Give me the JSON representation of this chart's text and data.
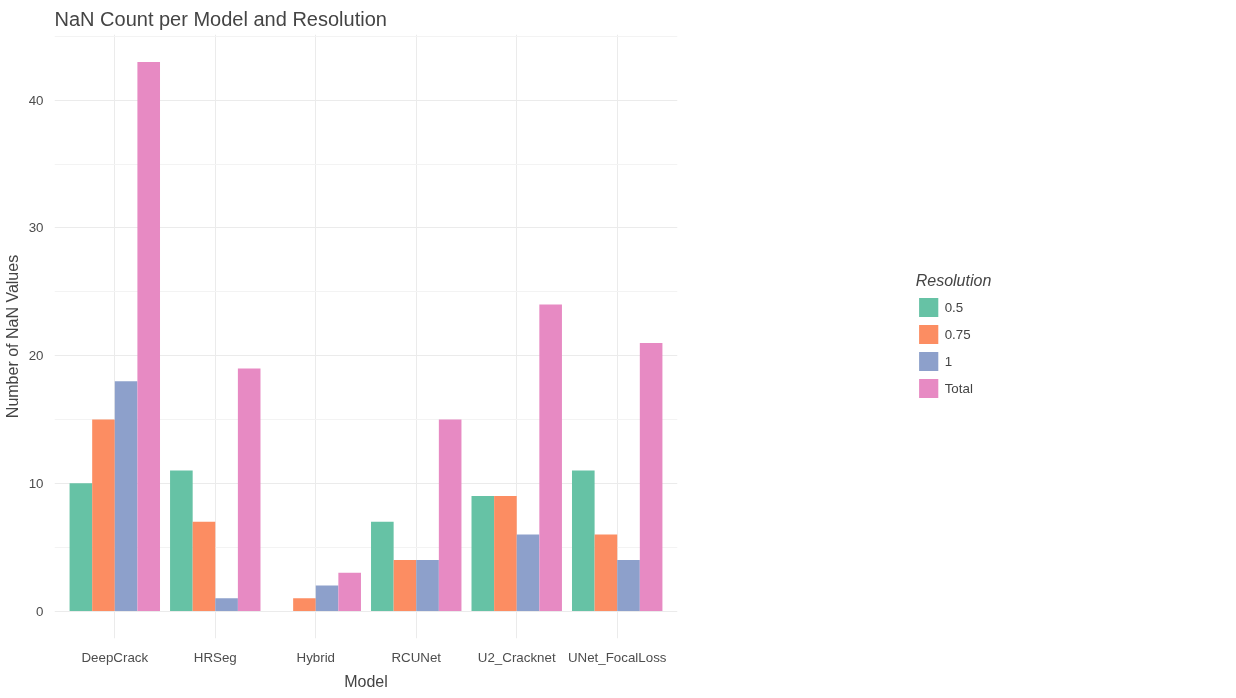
{
  "chart_data": {
    "type": "bar",
    "title": "NaN Count per Model and Resolution",
    "xlabel": "Model",
    "ylabel": "Number of NaN Values",
    "legend_title": "Resolution",
    "categories": [
      "DeepCrack",
      "HRSeg",
      "Hybrid",
      "RCUNet",
      "U2_Cracknet",
      "UNet_FocalLoss"
    ],
    "series": [
      {
        "name": "0.5",
        "color": "#66c2a5",
        "values": [
          10,
          11,
          null,
          7,
          9,
          11
        ]
      },
      {
        "name": "0.75",
        "color": "#fc8d62",
        "values": [
          15,
          7,
          1,
          4,
          9,
          6
        ]
      },
      {
        "name": "1",
        "color": "#8da0cb",
        "values": [
          18,
          1,
          2,
          4,
          6,
          4
        ]
      },
      {
        "name": "Total",
        "color": "#e78ac3",
        "values": [
          43,
          19,
          3,
          15,
          24,
          21
        ]
      }
    ],
    "ylim": [
      -2.15,
      45.15
    ],
    "yticks": [
      0,
      10,
      20,
      30,
      40
    ],
    "grid": true,
    "legend": "right"
  }
}
